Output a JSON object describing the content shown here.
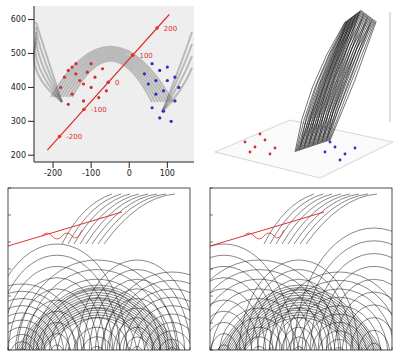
{
  "chart_data": {
    "type": "scatter",
    "xlim": [
      -250,
      170
    ],
    "ylim": [
      180,
      640
    ],
    "xticks": [
      -200,
      -100,
      0,
      100
    ],
    "yticks": [
      200,
      300,
      400,
      500,
      600
    ],
    "tick_labels": true,
    "series": [
      {
        "color": "#d03030",
        "x": [
          -180,
          -170,
          -160,
          -150,
          -140,
          -130,
          -120,
          -110,
          -100,
          -90,
          -80,
          -70,
          -160,
          -140,
          -120,
          -100,
          -150,
          -60
        ],
        "y": [
          400,
          430,
          450,
          380,
          470,
          420,
          360,
          445,
          400,
          430,
          370,
          455,
          350,
          440,
          410,
          470,
          460,
          390
        ]
      },
      {
        "color": "#3030c0",
        "x": [
          40,
          50,
          60,
          70,
          80,
          90,
          100,
          110,
          120,
          130,
          60,
          80,
          100,
          120,
          90,
          70
        ],
        "y": [
          440,
          410,
          470,
          380,
          450,
          330,
          420,
          300,
          360,
          400,
          340,
          310,
          460,
          430,
          390,
          420
        ]
      }
    ],
    "annotation_line": {
      "color": "#e03030",
      "x": [
        -215,
        105
      ],
      "y": [
        215,
        615
      ],
      "ticks": [
        {
          "value": -200,
          "x": -183,
          "y": 255
        },
        {
          "value": -100,
          "x": -119,
          "y": 335
        },
        {
          "value": 0,
          "x": -55,
          "y": 415
        },
        {
          "value": 100,
          "x": 9,
          "y": 495
        },
        {
          "value": 200,
          "x": 73,
          "y": 575
        }
      ]
    }
  }
}
